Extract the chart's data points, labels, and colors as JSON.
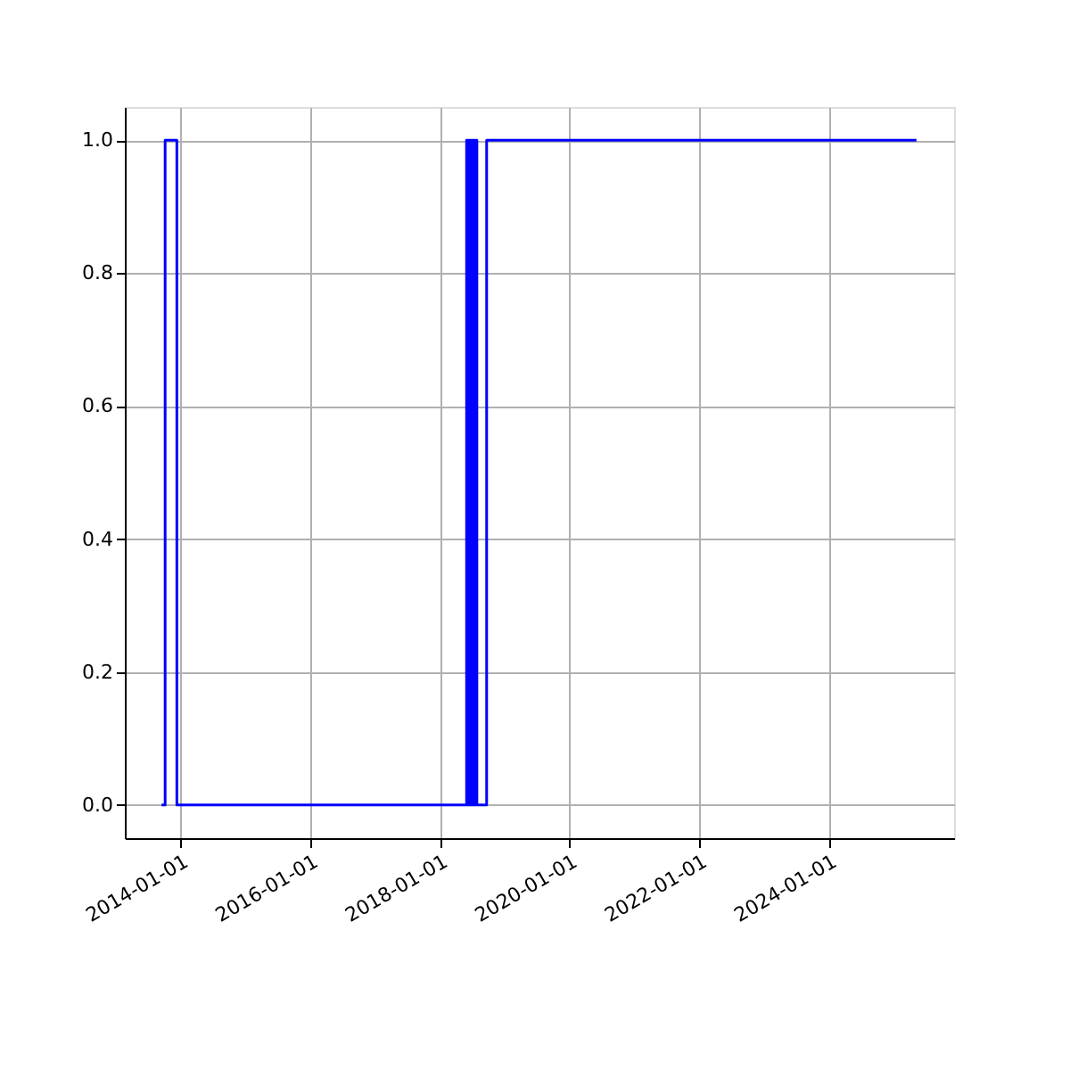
{
  "chart_data": {
    "type": "step",
    "x": [
      "2013-09-15",
      "2013-10-05",
      "2013-12-10",
      "2018-05-30",
      "2018-06-05",
      "2018-06-10",
      "2018-06-15",
      "2018-06-20",
      "2018-06-25",
      "2018-06-30",
      "2018-07-05",
      "2018-07-10",
      "2018-07-15",
      "2018-07-20",
      "2018-07-27",
      "2018-09-20",
      "2025-05-07"
    ],
    "series": [
      {
        "color": "#0000ff",
        "values": [
          0,
          1,
          0,
          1,
          0,
          1,
          0,
          1,
          0,
          1,
          0,
          1,
          0,
          1,
          0,
          1,
          1
        ]
      }
    ],
    "xlim": [
      "2013-02-20",
      "2025-12-05"
    ],
    "xticks": [
      "2014-01-01",
      "2016-01-01",
      "2018-01-01",
      "2020-01-01",
      "2022-01-01",
      "2024-01-01"
    ],
    "ylim": [
      -0.05,
      1.05
    ],
    "yticks": [
      {
        "value": 0,
        "label": "0.0"
      },
      {
        "value": 0.2,
        "label": "0.2"
      },
      {
        "value": 0.4,
        "label": "0.4"
      },
      {
        "value": 0.6,
        "label": "0.6"
      },
      {
        "value": 0.8,
        "label": "0.8"
      },
      {
        "value": 1,
        "label": "1.0"
      }
    ],
    "grid": true,
    "line_style": "solid"
  }
}
